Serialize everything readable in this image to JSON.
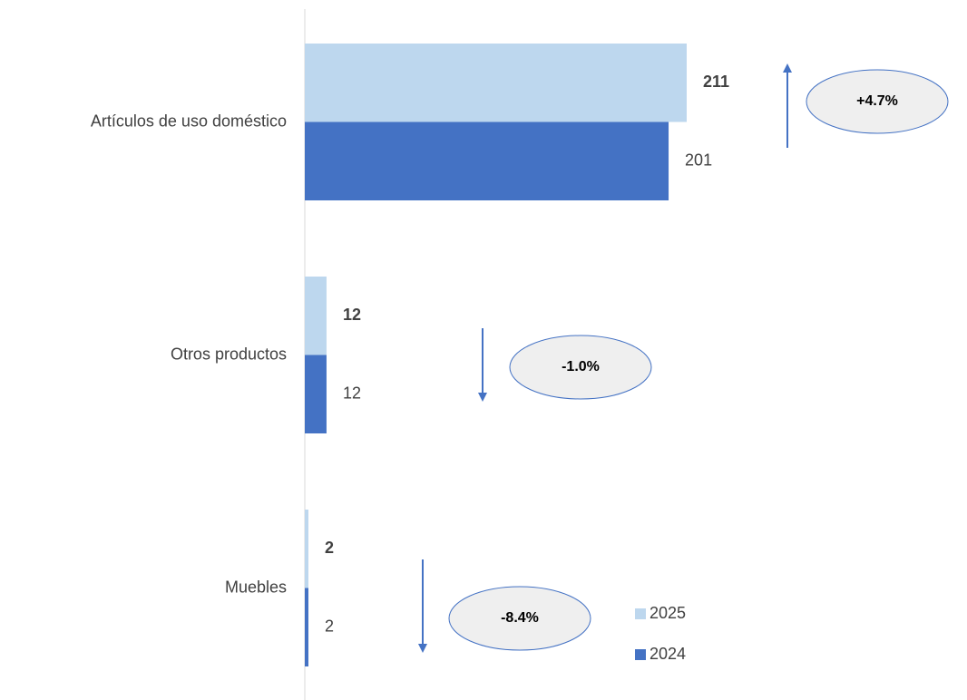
{
  "chart_data": {
    "type": "hbar",
    "categories": [
      "Artículos de uso doméstico",
      "Otros productos",
      "Muebles"
    ],
    "series": [
      {
        "name": "2025",
        "color": "#bdd7ee",
        "values": [
          211,
          12,
          2
        ]
      },
      {
        "name": "2024",
        "color": "#4472c4",
        "values": [
          201,
          12,
          2
        ]
      }
    ],
    "annotations": [
      {
        "text": "+4.7%",
        "direction": "up"
      },
      {
        "text": "-1.0%",
        "direction": "down"
      },
      {
        "text": "-8.4%",
        "direction": "down"
      }
    ],
    "legend": "lower right"
  }
}
